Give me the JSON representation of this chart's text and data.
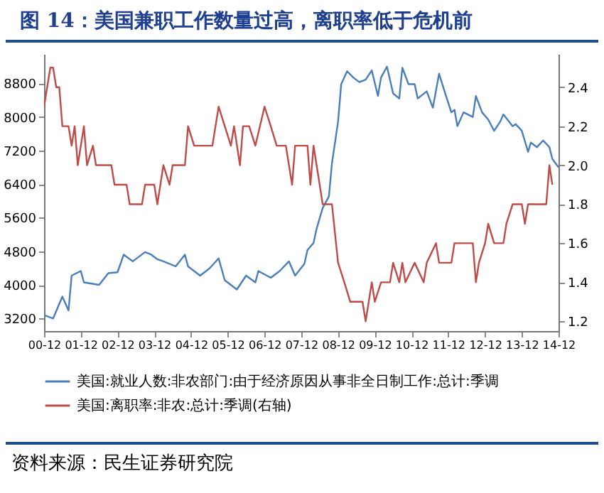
{
  "chart_data": {
    "type": "line",
    "title": "图 14：美国兼职工作数量过高，离职率低于危机前",
    "annotations": [
      "资料来源：民生证券研究院"
    ],
    "legend": "bottom",
    "xlim": [
      "2000-12",
      "2014-12"
    ],
    "xticks": [
      {
        "value": "2000-12",
        "label": "00-12"
      },
      {
        "value": "2001-12",
        "label": "01-12"
      },
      {
        "value": "2002-12",
        "label": "02-12"
      },
      {
        "value": "2003-12",
        "label": "03-12"
      },
      {
        "value": "2004-12",
        "label": "04-12"
      },
      {
        "value": "2005-12",
        "label": "05-12"
      },
      {
        "value": "2006-12",
        "label": "06-12"
      },
      {
        "value": "2007-12",
        "label": "07-12"
      },
      {
        "value": "2008-12",
        "label": "08-12"
      },
      {
        "value": "2009-12",
        "label": "09-12"
      },
      {
        "value": "2010-12",
        "label": "10-12"
      },
      {
        "value": "2011-12",
        "label": "11-12"
      },
      {
        "value": "2012-12",
        "label": "12-12"
      },
      {
        "value": "2013-12",
        "label": "13-12"
      },
      {
        "value": "2014-12",
        "label": "14-12"
      }
    ],
    "ylim": [
      2900,
      9500
    ],
    "yticks": [
      3200,
      4000,
      4800,
      5600,
      6400,
      7200,
      8000,
      8800
    ],
    "y2lim": [
      1.15,
      2.57
    ],
    "y2ticks": [
      1.2,
      1.4,
      1.6,
      1.8,
      {
        "value": 2,
        "label": "2.0"
      },
      2.2,
      2.4
    ],
    "series": [
      {
        "name": "美国:就业人数:非农部门:由于经济原因从事非全日制工作:总计:季调",
        "color": "#4a7ebb",
        "x": [
          "2000-12",
          "2001-03",
          "2001-06",
          "2001-08",
          "2001-09",
          "2001-12",
          "2002-01",
          "2002-06",
          "2002-09",
          "2002-12",
          "2003-02",
          "2003-05",
          "2003-09",
          "2003-11",
          "2004-01",
          "2004-03",
          "2004-07",
          "2004-10",
          "2004-11",
          "2005-03",
          "2005-06",
          "2005-09",
          "2005-11",
          "2006-03",
          "2006-06",
          "2006-09",
          "2006-10",
          "2007-02",
          "2007-05",
          "2007-08",
          "2007-10",
          "2008-01",
          "2008-02",
          "2008-04",
          "2008-05",
          "2008-07",
          "2008-09",
          "2008-10",
          "2008-12",
          "2009-01",
          "2009-03",
          "2009-05",
          "2009-07",
          "2009-09",
          "2009-11",
          "2010-01",
          "2010-02",
          "2010-04",
          "2010-06",
          "2010-08",
          "2010-09",
          "2010-11",
          "2011-01",
          "2011-02",
          "2011-05",
          "2011-07",
          "2011-09",
          "2011-11",
          "2012-01",
          "2012-02",
          "2012-03",
          "2012-05",
          "2012-08",
          "2012-09",
          "2012-11",
          "2013-01",
          "2013-03",
          "2013-05",
          "2013-06",
          "2013-09",
          "2013-10",
          "2013-12",
          "2014-02",
          "2014-03",
          "2014-05",
          "2014-07",
          "2014-09",
          "2014-10",
          "2014-12"
        ],
        "values": [
          3280,
          3200,
          3720,
          3390,
          4220,
          4330,
          4060,
          4000,
          4280,
          4300,
          4720,
          4560,
          4780,
          4720,
          4610,
          4560,
          4440,
          4720,
          4440,
          4220,
          4390,
          4630,
          4110,
          3890,
          4220,
          4060,
          4330,
          4170,
          4330,
          4560,
          4220,
          4500,
          4830,
          5000,
          5330,
          5830,
          6110,
          6890,
          7890,
          8780,
          9090,
          8940,
          8830,
          8890,
          9110,
          8500,
          8940,
          9200,
          8560,
          8440,
          9170,
          8780,
          8780,
          8440,
          8610,
          8220,
          9030,
          8560,
          8110,
          8170,
          7780,
          8110,
          8000,
          8500,
          8110,
          7940,
          7670,
          7890,
          8060,
          7780,
          7830,
          7670,
          7170,
          7390,
          7280,
          7440,
          7280,
          7000,
          6800
        ]
      },
      {
        "name": "美国:离职率:非农:总计:季调(右轴)",
        "color": "#be4b48",
        "axis": "y2",
        "x": [
          "2000-12",
          "2001-02",
          "2001-03",
          "2001-04",
          "2001-05",
          "2001-06",
          "2001-08",
          "2001-09",
          "2001-10",
          "2001-11",
          "2002-01",
          "2002-02",
          "2002-04",
          "2002-05",
          "2002-10",
          "2002-11",
          "2003-03",
          "2003-04",
          "2003-08",
          "2003-09",
          "2003-12",
          "2004-01",
          "2004-03",
          "2004-05",
          "2004-06",
          "2004-10",
          "2004-11",
          "2005-01",
          "2005-03",
          "2005-07",
          "2005-09",
          "2005-11",
          "2006-01",
          "2006-02",
          "2006-04",
          "2006-05",
          "2006-07",
          "2006-09",
          "2006-12",
          "2007-02",
          "2007-04",
          "2007-07",
          "2007-09",
          "2007-10",
          "2008-02",
          "2008-03",
          "2008-04",
          "2008-06",
          "2008-07",
          "2008-10",
          "2008-12",
          "2009-02",
          "2009-04",
          "2009-08",
          "2009-09",
          "2009-11",
          "2009-12",
          "2010-02",
          "2010-05",
          "2010-06",
          "2010-08",
          "2010-09",
          "2010-10",
          "2011-01",
          "2011-04",
          "2011-05",
          "2011-08",
          "2011-09",
          "2012-01",
          "2012-02",
          "2012-08",
          "2012-09",
          "2012-10",
          "2012-12",
          "2013-01",
          "2013-03",
          "2013-06",
          "2013-07",
          "2013-09",
          "2013-12",
          "2014-01",
          "2014-02",
          "2014-08",
          "2014-09",
          "2014-10"
        ],
        "values": [
          2.3,
          2.5,
          2.5,
          2.4,
          2.4,
          2.2,
          2.2,
          2.1,
          2.2,
          2.0,
          2.2,
          2.0,
          2.1,
          2.0,
          2.0,
          1.9,
          1.9,
          1.8,
          1.8,
          1.9,
          1.9,
          1.8,
          2.0,
          1.9,
          2.0,
          2.0,
          2.2,
          2.1,
          2.1,
          2.1,
          2.3,
          2.2,
          2.1,
          2.2,
          2.0,
          2.2,
          2.2,
          2.1,
          2.3,
          2.2,
          2.1,
          2.1,
          1.9,
          2.1,
          2.1,
          1.9,
          2.1,
          1.9,
          1.8,
          1.8,
          1.5,
          1.4,
          1.3,
          1.3,
          1.2,
          1.4,
          1.3,
          1.4,
          1.4,
          1.5,
          1.4,
          1.5,
          1.4,
          1.5,
          1.4,
          1.5,
          1.6,
          1.5,
          1.5,
          1.6,
          1.6,
          1.4,
          1.5,
          1.6,
          1.7,
          1.6,
          1.6,
          1.7,
          1.8,
          1.8,
          1.7,
          1.8,
          1.8,
          2.0,
          1.9
        ]
      }
    ]
  }
}
